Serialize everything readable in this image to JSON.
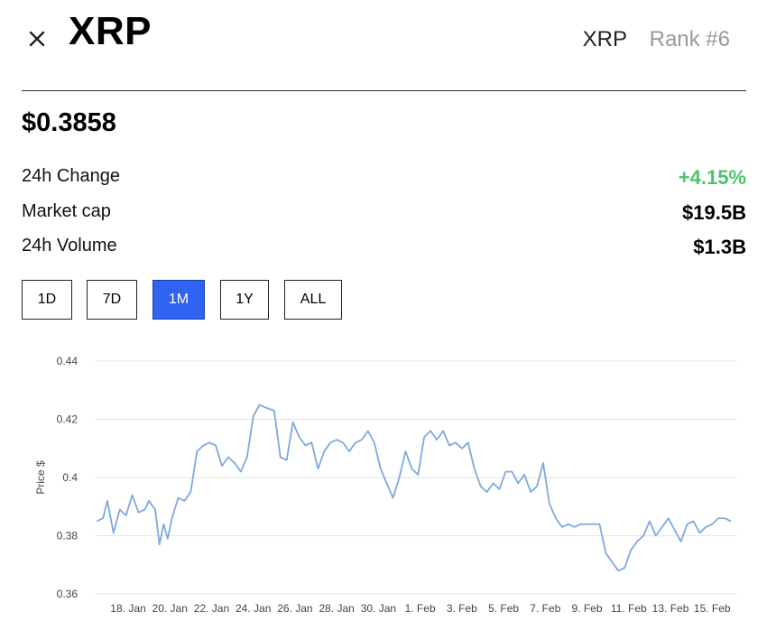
{
  "header": {
    "title": "XRP",
    "ticker": "XRP",
    "rank": "Rank #6"
  },
  "price": "$0.3858",
  "stats": [
    {
      "label": "24h Change",
      "value": "+4.15%",
      "color": "#4cc46b"
    },
    {
      "label": "Market cap",
      "value": "$19.5B"
    },
    {
      "label": "24h Volume",
      "value": "$1.3B"
    }
  ],
  "ranges": [
    {
      "label": "1D",
      "active": false
    },
    {
      "label": "7D",
      "active": false
    },
    {
      "label": "1M",
      "active": true
    },
    {
      "label": "1Y",
      "active": false
    },
    {
      "label": "ALL",
      "active": false
    }
  ],
  "colors": {
    "accent": "#2f63f2",
    "line": "#7ea9de",
    "positive": "#4cc46b"
  },
  "chart_data": {
    "type": "line",
    "ylabel": "Price $",
    "xlabel": "",
    "ylim": [
      0.36,
      0.44
    ],
    "yticks": [
      "0.36",
      "0.38",
      "0.4",
      "0.42",
      "0.44"
    ],
    "xticks": [
      {
        "label": "18. Jan",
        "day": 18
      },
      {
        "label": "20. Jan",
        "day": 20
      },
      {
        "label": "22. Jan",
        "day": 22
      },
      {
        "label": "24. Jan",
        "day": 24
      },
      {
        "label": "26. Jan",
        "day": 26
      },
      {
        "label": "28. Jan",
        "day": 28
      },
      {
        "label": "30. Jan",
        "day": 30
      },
      {
        "label": "1. Feb",
        "day": 32
      },
      {
        "label": "3. Feb",
        "day": 34
      },
      {
        "label": "5. Feb",
        "day": 36
      },
      {
        "label": "7. Feb",
        "day": 38
      },
      {
        "label": "9. Feb",
        "day": 40
      },
      {
        "label": "11. Feb",
        "day": 42
      },
      {
        "label": "13. Feb",
        "day": 44
      },
      {
        "label": "15. Feb",
        "day": 46
      }
    ],
    "grid": true,
    "series": [
      {
        "color": "#7ea9de",
        "x": [
          16.5,
          16.8,
          17.0,
          17.3,
          17.6,
          17.9,
          18.2,
          18.5,
          18.8,
          19.0,
          19.3,
          19.5,
          19.7,
          19.9,
          20.1,
          20.4,
          20.7,
          21.0,
          21.3,
          21.6,
          21.9,
          22.2,
          22.5,
          22.8,
          23.1,
          23.4,
          23.7,
          24.0,
          24.3,
          24.6,
          25.0,
          25.3,
          25.6,
          25.9,
          26.2,
          26.5,
          26.8,
          27.1,
          27.4,
          27.7,
          28.0,
          28.3,
          28.6,
          28.9,
          29.2,
          29.5,
          29.8,
          30.1,
          30.4,
          30.7,
          31.0,
          31.3,
          31.6,
          31.9,
          32.2,
          32.5,
          32.8,
          33.1,
          33.4,
          33.7,
          34.0,
          34.3,
          34.6,
          34.9,
          35.2,
          35.5,
          35.8,
          36.1,
          36.4,
          36.7,
          37.0,
          37.3,
          37.6,
          37.9,
          38.2,
          38.5,
          38.8,
          39.1,
          39.4,
          39.7,
          40.0,
          40.3,
          40.6,
          40.9,
          41.2,
          41.5,
          41.8,
          42.1,
          42.4,
          42.7,
          43.0,
          43.3,
          43.6,
          43.9,
          44.2,
          44.5,
          44.8,
          45.1,
          45.4,
          45.7,
          46.0,
          46.3,
          46.6,
          46.9
        ],
        "y": [
          0.385,
          0.386,
          0.392,
          0.381,
          0.389,
          0.387,
          0.394,
          0.388,
          0.389,
          0.392,
          0.389,
          0.377,
          0.384,
          0.379,
          0.386,
          0.393,
          0.392,
          0.395,
          0.409,
          0.411,
          0.412,
          0.411,
          0.404,
          0.407,
          0.405,
          0.402,
          0.407,
          0.421,
          0.425,
          0.424,
          0.423,
          0.407,
          0.406,
          0.419,
          0.414,
          0.411,
          0.412,
          0.403,
          0.409,
          0.412,
          0.413,
          0.412,
          0.409,
          0.412,
          0.413,
          0.416,
          0.412,
          0.403,
          0.398,
          0.393,
          0.4,
          0.409,
          0.403,
          0.401,
          0.414,
          0.416,
          0.413,
          0.416,
          0.411,
          0.412,
          0.41,
          0.412,
          0.403,
          0.397,
          0.395,
          0.398,
          0.396,
          0.402,
          0.402,
          0.398,
          0.401,
          0.395,
          0.397,
          0.405,
          0.391,
          0.386,
          0.383,
          0.384,
          0.383,
          0.384,
          0.384,
          0.384,
          0.384,
          0.374,
          0.371,
          0.368,
          0.369,
          0.375,
          0.378,
          0.38,
          0.385,
          0.38,
          0.383,
          0.386,
          0.382,
          0.378,
          0.384,
          0.385,
          0.381,
          0.383,
          0.384,
          0.386,
          0.386,
          0.385
        ]
      }
    ]
  }
}
